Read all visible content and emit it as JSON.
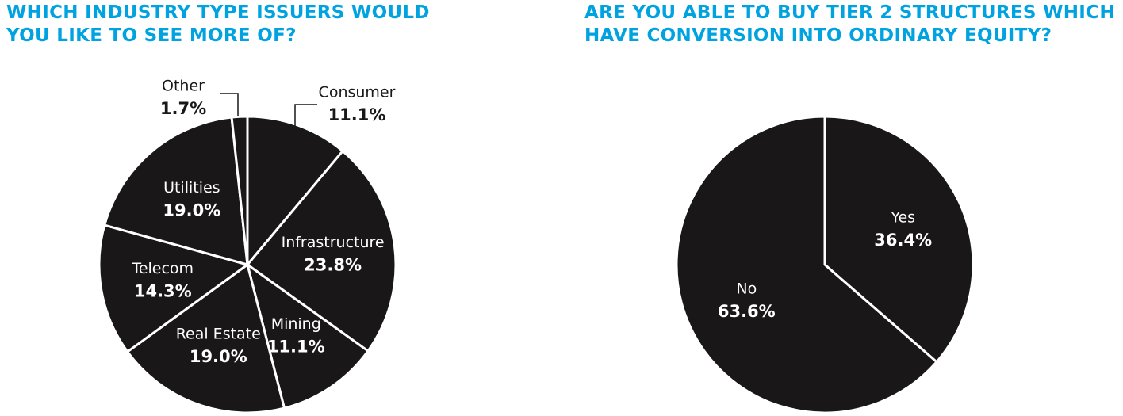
{
  "chart_data": [
    {
      "type": "pie",
      "title": "WHICH INDUSTRY TYPE ISSUERS WOULD YOU LIKE TO SEE MORE OF?",
      "categories": [
        "Consumer",
        "Infrastructure",
        "Mining",
        "Real Estate",
        "Telecom",
        "Utilities",
        "Other"
      ],
      "values": [
        11.1,
        23.8,
        11.1,
        19.0,
        14.3,
        19.0,
        1.7
      ],
      "value_labels": [
        "11.1%",
        "23.8%",
        "11.1%",
        "19.0%",
        "14.3%",
        "19.0%",
        "1.7%"
      ],
      "color": "#1a1718"
    },
    {
      "type": "pie",
      "title": "ARE YOU ABLE TO BUY TIER 2 STRUCTURES WHICH HAVE CONVERSION INTO ORDINARY EQUITY?",
      "categories": [
        "Yes",
        "No"
      ],
      "values": [
        36.4,
        63.6
      ],
      "value_labels": [
        "36.4%",
        "63.6%"
      ],
      "color": "#1a1718"
    }
  ]
}
